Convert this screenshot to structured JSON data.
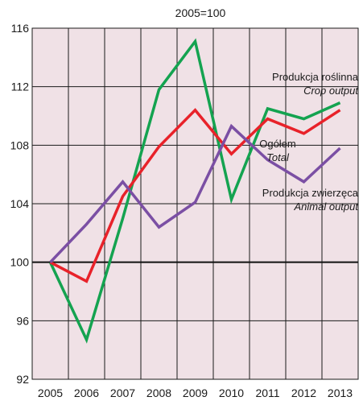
{
  "chart_data": {
    "type": "line",
    "subtitle": "2005=100",
    "x": [
      "2005",
      "2006",
      "2007",
      "2008",
      "2009",
      "2010",
      "2011",
      "2012",
      "2013"
    ],
    "ylim": [
      92,
      116
    ],
    "yticks": [
      "92",
      "96",
      "100",
      "104",
      "108",
      "112",
      "116"
    ],
    "grid": true,
    "background_color": "#f0e1e6",
    "reference_line": 100,
    "series": [
      {
        "name": "Produkcja roślinna",
        "name_en": "Crop output",
        "color": "#14a350",
        "values": [
          100,
          94.7,
          103.0,
          111.8,
          115.1,
          104.3,
          110.5,
          109.8,
          110.9
        ]
      },
      {
        "name": "Ogółem",
        "name_en": "Total",
        "color": "#e8222a",
        "values": [
          100,
          98.7,
          104.5,
          107.9,
          110.4,
          107.4,
          109.8,
          108.8,
          110.4
        ]
      },
      {
        "name": "Produkcja zwierzęca",
        "name_en": "Animal output",
        "color": "#7b4fa4",
        "values": [
          100,
          102.6,
          105.5,
          102.4,
          104.1,
          109.3,
          107.0,
          105.5,
          107.8
        ]
      }
    ]
  }
}
